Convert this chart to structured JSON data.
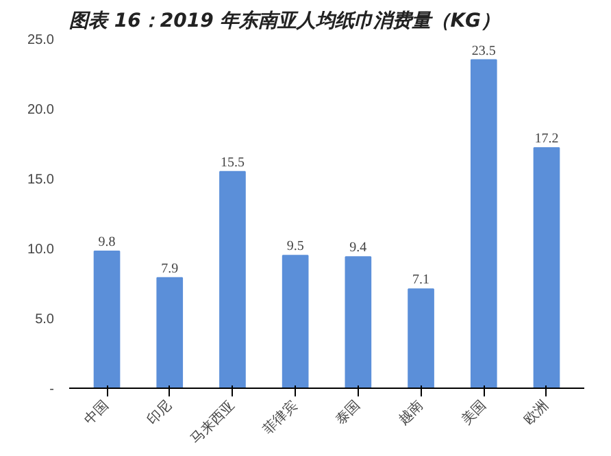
{
  "chart_data": {
    "type": "bar",
    "title": "图表 16：2019 年东南亚人均纸巾消费量（KG）",
    "categories": [
      "中国",
      "印尼",
      "马来西亚",
      "菲律宾",
      "泰国",
      "越南",
      "美国",
      "欧洲"
    ],
    "values": [
      9.8,
      7.9,
      15.5,
      9.5,
      9.4,
      7.1,
      23.5,
      17.2
    ],
    "color": "#5b8fd9",
    "ylim": [
      0,
      25
    ],
    "yticks": [
      {
        "value": 0,
        "label": "-"
      },
      {
        "value": 5,
        "label": "5.0"
      },
      {
        "value": 10,
        "label": "10.0"
      },
      {
        "value": 15,
        "label": "15.0"
      },
      {
        "value": 20,
        "label": "20.0"
      },
      {
        "value": 25,
        "label": "25.0"
      }
    ],
    "data_labels": true,
    "grid": false
  }
}
